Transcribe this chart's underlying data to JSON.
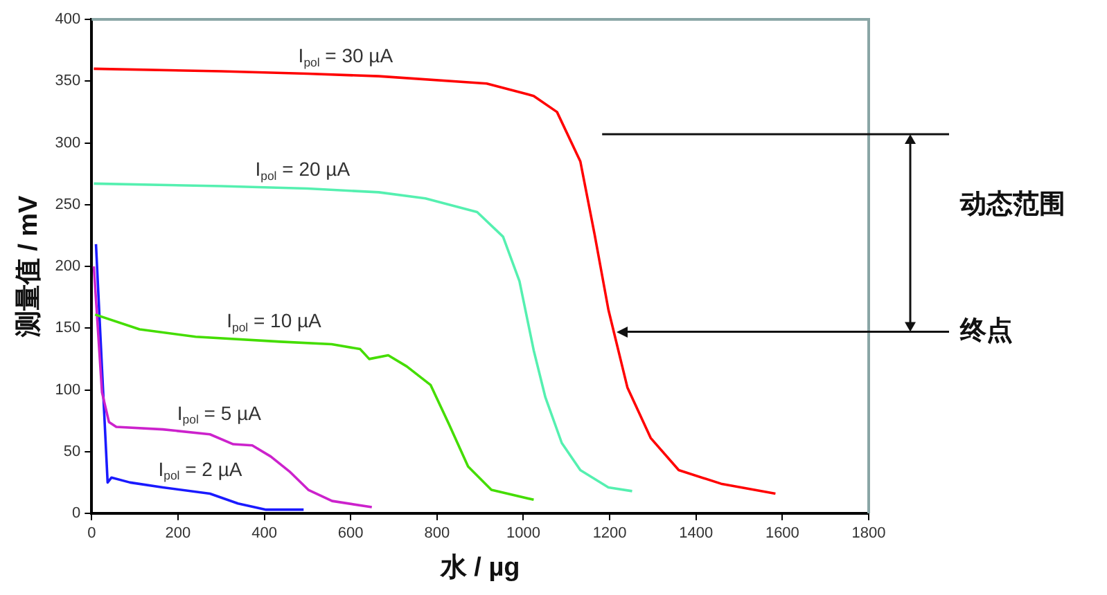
{
  "chart_data": {
    "type": "line",
    "xlabel": "水 / µg",
    "ylabel": "测量值 / mV",
    "xlim": [
      0,
      1800
    ],
    "xticks": [
      0,
      200,
      400,
      600,
      800,
      1000,
      1200,
      1400,
      1600,
      1800
    ],
    "ylim": [
      0,
      400
    ],
    "yticks": [
      0,
      50,
      100,
      150,
      200,
      250,
      300,
      350,
      400
    ],
    "grid": false,
    "legend": false,
    "marker": "none",
    "line_style": "solid",
    "series": [
      {
        "name": "I$_{pol}$ = 30 µA",
        "color": "#ff0000",
        "x": [
          5,
          300,
          500,
          665,
          915,
          1024,
          1078,
          1132,
          1165,
          1197,
          1241,
          1295,
          1360,
          1458,
          1584
        ],
        "values": [
          360,
          358,
          356,
          354,
          348,
          338,
          325,
          285,
          226,
          165,
          102,
          61,
          35,
          24,
          16
        ]
      },
      {
        "name": "I$_{pol}$ = 20 µA",
        "color": "#55f0b0",
        "x": [
          5,
          300,
          500,
          665,
          773,
          893,
          953,
          991,
          1024,
          1051,
          1089,
          1132,
          1197,
          1252
        ],
        "values": [
          267,
          265,
          263,
          260,
          255,
          244,
          224,
          188,
          132,
          94,
          57,
          35,
          21,
          18
        ]
      },
      {
        "name": "I$_{pol}$ = 10 µA",
        "color": "#44dd00",
        "x": [
          8,
          111,
          241,
          437,
          556,
          622,
          643,
          687,
          730,
          785,
          828,
          872,
          926,
          1024
        ],
        "values": [
          161,
          149,
          143,
          139,
          137,
          133,
          125,
          128,
          119,
          104,
          72,
          38,
          19,
          11
        ]
      },
      {
        "name": "I$_{pol}$ = 5 µA",
        "color": "#cc22cc",
        "x": [
          5,
          24,
          40,
          57,
          165,
          274,
          328,
          372,
          415,
          458,
          502,
          557,
          649
        ],
        "values": [
          200,
          98,
          74,
          70,
          68,
          64,
          56,
          55,
          46,
          34,
          19,
          10,
          5
        ]
      },
      {
        "name": "I$_{pol}$ = 2 µA",
        "color": "#1a1aff",
        "x": [
          10,
          24,
          37,
          46,
          89,
          165,
          274,
          339,
          404,
          491
        ],
        "values": [
          218,
          117,
          25,
          29,
          25,
          21,
          16,
          8,
          3,
          3
        ]
      }
    ],
    "annotations": [
      "动态范围"
    ],
    "ref_lines": [
      {
        "axis": "y",
        "value": 307
      },
      {
        "axis": "y",
        "value": 147,
        "label": "终点"
      }
    ]
  }
}
